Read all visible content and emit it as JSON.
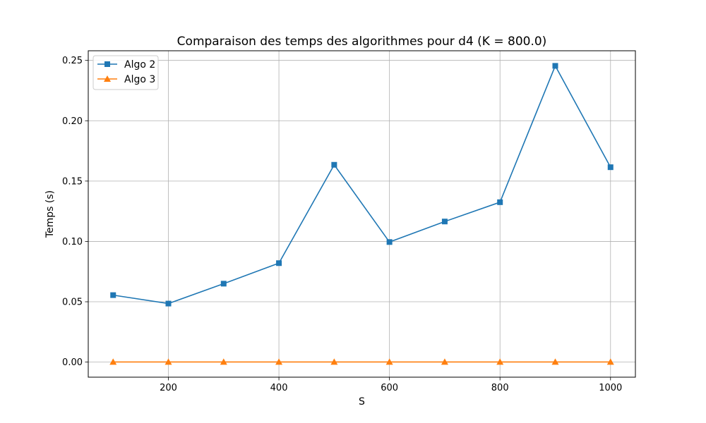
{
  "chart_data": {
    "type": "line",
    "title": "Comparaison des temps des algorithmes pour d4 (K = 800.0)",
    "xlabel": "S",
    "ylabel": "Temps (s)",
    "x": [
      100,
      200,
      300,
      400,
      500,
      600,
      700,
      800,
      900,
      1000
    ],
    "xlim": [
      55,
      1045
    ],
    "ylim": [
      -0.0125,
      0.258
    ],
    "xticks": [
      200,
      400,
      600,
      800,
      1000
    ],
    "xtick_labels": [
      "200",
      "400",
      "600",
      "800",
      "1000"
    ],
    "yticks": [
      0.0,
      0.05,
      0.1,
      0.15,
      0.2,
      0.25
    ],
    "ytick_labels": [
      "0.00",
      "0.05",
      "0.10",
      "0.15",
      "0.20",
      "0.25"
    ],
    "grid": true,
    "legend_position": "top-left",
    "series": [
      {
        "name": "Algo 2",
        "color": "#1f77b4",
        "marker": "square",
        "values": [
          0.0555,
          0.0485,
          0.065,
          0.082,
          0.1635,
          0.0995,
          0.1165,
          0.1325,
          0.2455,
          0.1615
        ]
      },
      {
        "name": "Algo 3",
        "color": "#ff7f0e",
        "marker": "triangle",
        "values": [
          0.0001,
          0.0001,
          0.0001,
          0.0001,
          0.0001,
          0.0001,
          0.0001,
          0.0001,
          0.0001,
          0.0001
        ]
      }
    ]
  }
}
